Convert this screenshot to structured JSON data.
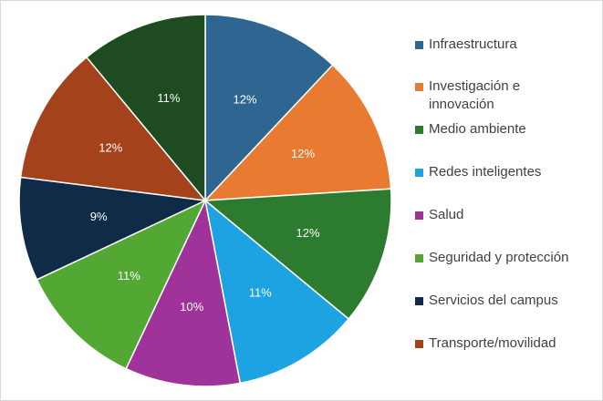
{
  "chart_data": {
    "type": "pie",
    "categories": [
      "Infraestructura",
      "Investigación e innovación",
      "Medio ambiente",
      "Redes inteligentes",
      "Salud",
      "Seguridad y protección",
      "Servicios del campus",
      "Transporte/movilidad",
      null
    ],
    "values": [
      12,
      12,
      12,
      11,
      10,
      11,
      9,
      12,
      11
    ],
    "value_labels": [
      "12%",
      "12%",
      "12%",
      "11%",
      "10%",
      "11%",
      "9%",
      "12%",
      "11%"
    ],
    "colors": [
      "#2e6691",
      "#e97a32",
      "#2c7b2f",
      "#1da3e2",
      "#a0339a",
      "#52a832",
      "#0f2b47",
      "#a4421c",
      "#1e4c20"
    ]
  }
}
